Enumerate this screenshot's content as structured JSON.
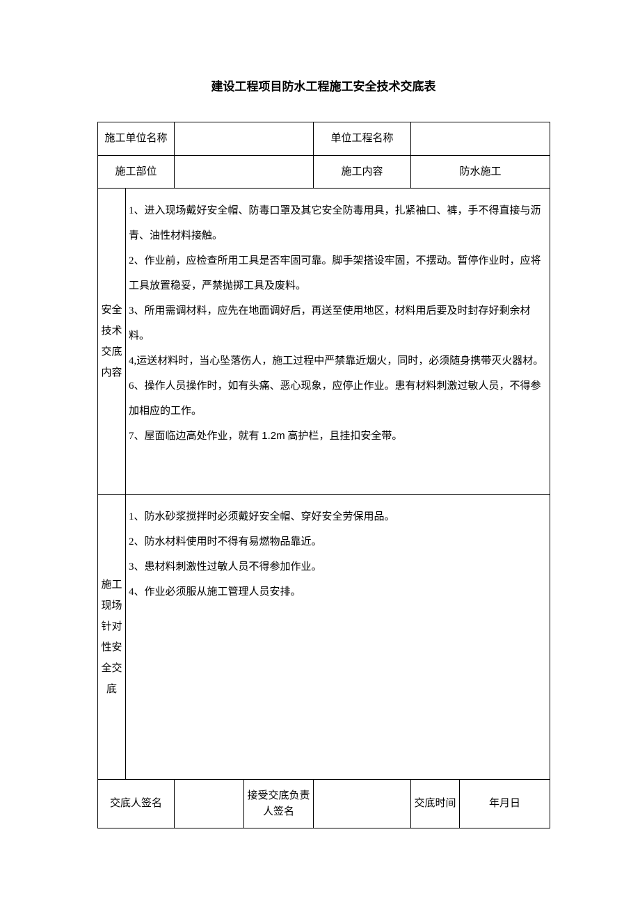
{
  "title": "建设工程项目防水工程施工安全技术交底表",
  "header": {
    "row1_label1": "施工单位名称",
    "row1_value1": "",
    "row1_label2": "单位工程名称",
    "row1_value2": "",
    "row2_label1": "施工部位",
    "row2_value1": "",
    "row2_label2": "施工内容",
    "row2_value2": "防水施工"
  },
  "section_a": {
    "label": "安全技术交底内容",
    "lines": [
      "1、进入现场戴好安全帽、防毒口罩及其它安全防毒用具，扎紧袖口、裤，手不得直接与沥青、油性材料接触。",
      "2、作业前，应检查所用工具是否牢固可靠。脚手架搭设牢固，不摆动。暂停作业时，应将工具放置稳妥，严禁抛掷工具及废料。",
      "3、所用需调材料，应先在地面调好后，再送至使用地区，材料用后要及时封存好剩余材料。",
      "4,运送材料时，当心坠落伤人，施工过程中严禁靠近烟火，同时，必须随身携带灭火器材。",
      "6、操作人员操作时，如有头痛、恶心现象，应停止作业。患有材料刺激过敏人员，不得参加相应的工作。",
      "7、屋面临边高处作业，就有 1.2m 高护栏，且挂扣安全带。"
    ]
  },
  "section_b": {
    "label": "施工现场针对性安全交底",
    "lines": [
      "1、防水砂浆搅拌时必须戴好安全帽、穿好安全劳保用品。",
      "2、防水材料使用时不得有易燃物品靠近。",
      "3、患材料刺激性过敏人员不得参加作业。",
      "4、作业必须服从施工管理人员安排。"
    ]
  },
  "footer": {
    "label1": "交底人签名",
    "value1": "",
    "label2": "接受交底负责人签名",
    "value2": "",
    "label3": "交底时间",
    "value3": "年月日"
  }
}
